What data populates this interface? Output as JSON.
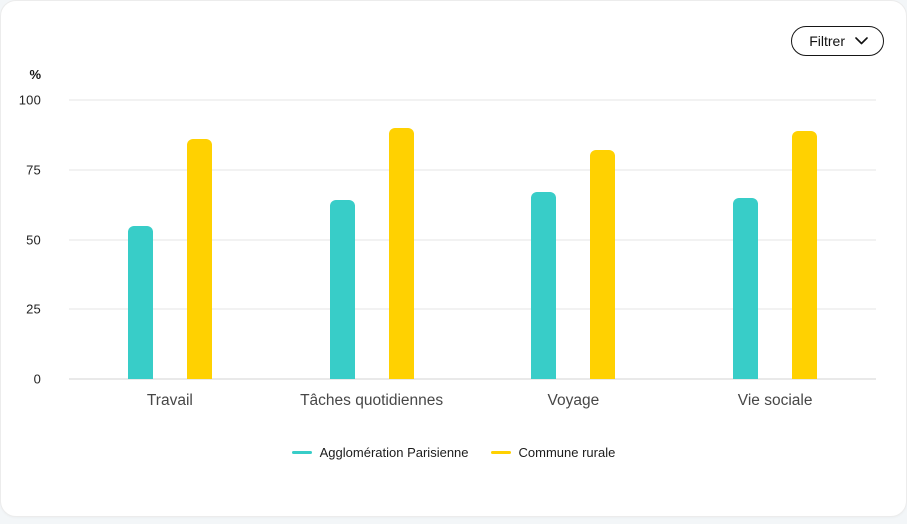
{
  "toolbar": {
    "filter_label": "Filtrer"
  },
  "chart_data": {
    "type": "bar",
    "title": "",
    "axis_unit": "%",
    "categories": [
      "Travail",
      "Tâches quotidiennes",
      "Voyage",
      "Vie sociale"
    ],
    "series": [
      {
        "name": "Agglomération Parisienne",
        "color": "#38cdc8",
        "values": [
          55,
          64,
          67,
          65
        ]
      },
      {
        "name": "Commune rurale",
        "color": "#ffd101",
        "values": [
          86,
          90,
          82,
          89
        ]
      }
    ],
    "ylim": [
      0,
      100
    ],
    "yticks": [
      0,
      25,
      50,
      75,
      100
    ],
    "grid": true,
    "legend_position": "bottom"
  },
  "colors": {
    "card_background": "#ffffff",
    "page_background": "#f3f6f8",
    "gridline": "#f2f2f2",
    "text": "#1c1c1c"
  }
}
